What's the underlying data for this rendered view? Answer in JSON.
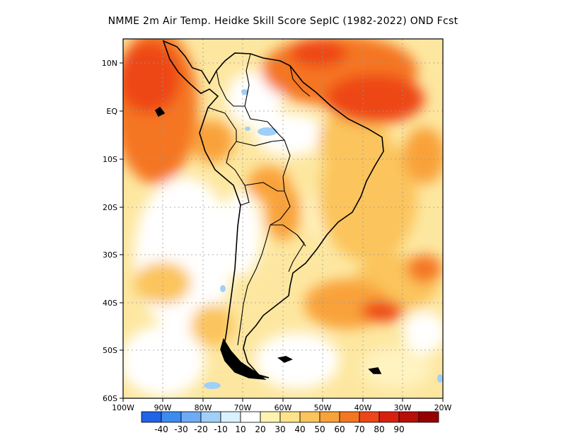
{
  "title": "NMME  2m Air Temp. Heidke Skill Score SepIC (1982-2022) OND Fcst",
  "map": {
    "lat_labels": [
      "10N",
      "EQ",
      "10S",
      "20S",
      "30S",
      "40S",
      "50S",
      "60S"
    ],
    "lon_labels": [
      "100W",
      "90W",
      "80W",
      "70W",
      "60W",
      "50W",
      "40W",
      "30W",
      "20W"
    ],
    "extent": {
      "lon_min": -100,
      "lon_max": -20,
      "lat_min": -60,
      "lat_max": 15
    }
  },
  "colorbar": {
    "labels": [
      "-40",
      "-30",
      "-20",
      "-10",
      "10",
      "20",
      "30",
      "40",
      "50",
      "60",
      "70",
      "80",
      "90"
    ],
    "colors": [
      "#1f63e6",
      "#3b8bf0",
      "#6eaaf5",
      "#a0d0f8",
      "#d8f2ff",
      "#ffffff",
      "#fff3b0",
      "#fde38a",
      "#fbc45c",
      "#f9a23a",
      "#f57620",
      "#ee4618",
      "#d9200e",
      "#b80e08",
      "#960000"
    ]
  }
}
